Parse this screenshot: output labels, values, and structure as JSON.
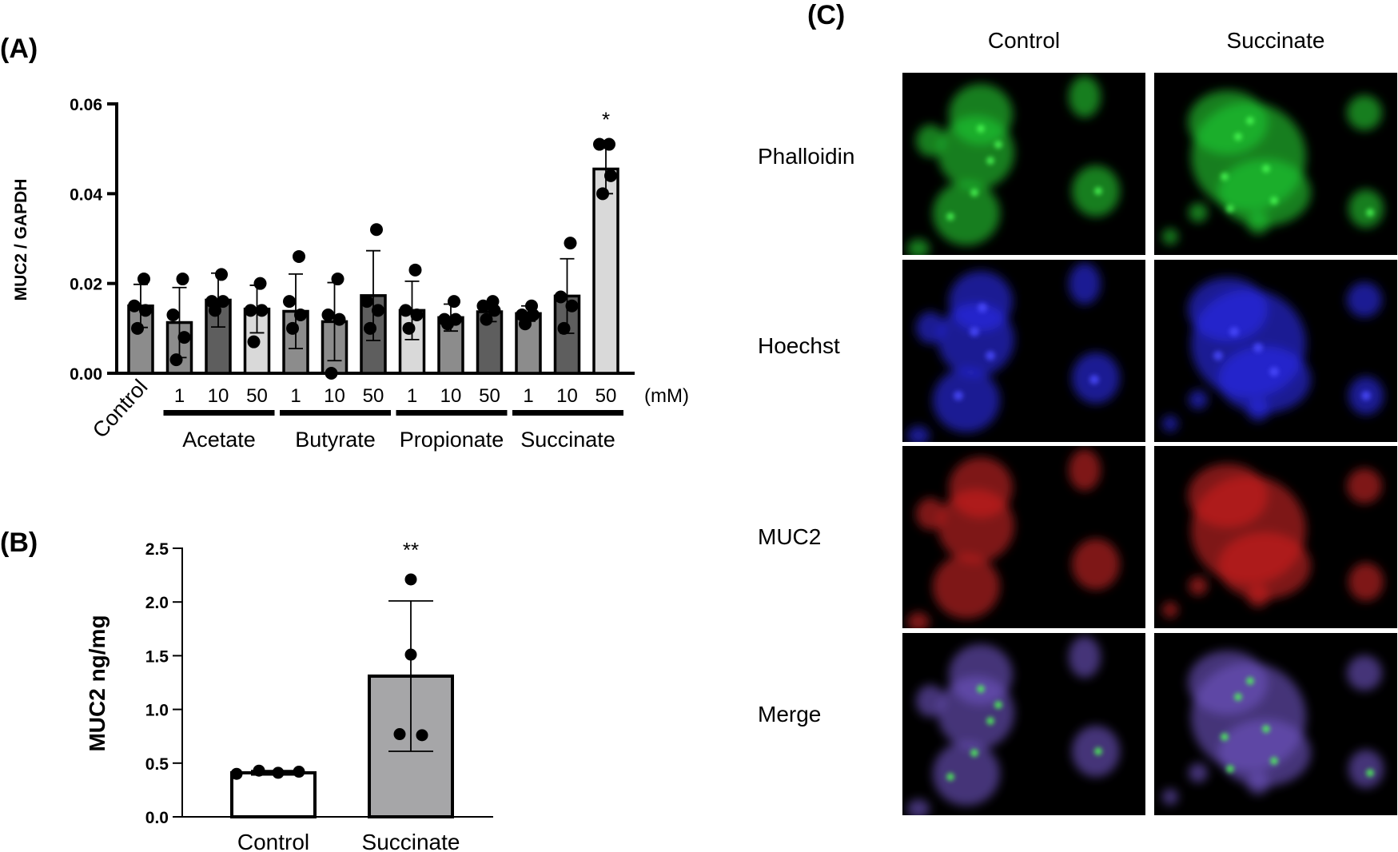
{
  "panels": {
    "a_letter": "(A)",
    "b_letter": "(B)",
    "c_letter": "(C)"
  },
  "chart_data": [
    {
      "type": "bar",
      "panel": "A",
      "title": "",
      "ylabel": "MUC2 / GAPDH",
      "xlabel": "",
      "ylim": [
        0,
        0.06
      ],
      "yticks": [
        "0.00",
        "0.02",
        "0.04",
        "0.06"
      ],
      "unit_label": "(mM)",
      "categories": [
        "Control",
        "1",
        "10",
        "50",
        "1",
        "10",
        "50",
        "1",
        "10",
        "50",
        "1",
        "10",
        "50"
      ],
      "groups": [
        {
          "name": "Acetate",
          "from": 1,
          "to": 3
        },
        {
          "name": "Butyrate",
          "from": 4,
          "to": 6
        },
        {
          "name": "Propionate",
          "from": 7,
          "to": 9
        },
        {
          "name": "Succinate",
          "from": 10,
          "to": 12
        }
      ],
      "values": [
        0.015,
        0.0113,
        0.0163,
        0.0143,
        0.0138,
        0.0115,
        0.0173,
        0.014,
        0.0124,
        0.0137,
        0.0133,
        0.0172,
        0.0455
      ],
      "error": [
        0.0048,
        0.0078,
        0.006,
        0.0053,
        0.0083,
        0.0087,
        0.01,
        0.0065,
        0.003,
        0.0022,
        0.0017,
        0.0083,
        0.0055
      ],
      "points": [
        [
          0.021,
          0.015,
          0.014,
          0.01
        ],
        [
          0.021,
          0.013,
          0.008,
          0.003
        ],
        [
          0.022,
          0.016,
          0.016,
          0.014
        ],
        [
          0.02,
          0.014,
          0.014,
          0.007
        ],
        [
          0.026,
          0.016,
          0.013,
          0.01
        ],
        [
          0.021,
          0.013,
          0.012,
          0.0
        ],
        [
          0.032,
          0.016,
          0.014,
          0.01
        ],
        [
          0.023,
          0.014,
          0.013,
          0.01
        ],
        [
          0.016,
          0.012,
          0.012,
          0.011
        ],
        [
          0.016,
          0.015,
          0.014,
          0.012
        ],
        [
          0.015,
          0.013,
          0.013,
          0.011
        ],
        [
          0.029,
          0.017,
          0.015,
          0.01
        ],
        [
          0.051,
          0.051,
          0.044,
          0.04
        ]
      ],
      "bar_colors": [
        "#8c8c8c",
        "#8c8c8c",
        "#5e5e5e",
        "#d9d9d9",
        "#8c8c8c",
        "#8c8c8c",
        "#5e5e5e",
        "#d9d9d9",
        "#8c8c8c",
        "#5e5e5e",
        "#8c8c8c",
        "#5e5e5e",
        "#d9d9d9"
      ],
      "significance": [
        {
          "index": 12,
          "label": "*"
        }
      ],
      "grid": false,
      "legend": "none"
    },
    {
      "type": "bar",
      "panel": "B",
      "title": "",
      "ylabel": "MUC2 ng/mg",
      "xlabel": "",
      "ylim": [
        0,
        2.5
      ],
      "yticks": [
        "0.0",
        "0.5",
        "1.0",
        "1.5",
        "2.0",
        "2.5"
      ],
      "categories": [
        "Control",
        "Succinate"
      ],
      "values": [
        0.41,
        1.31
      ],
      "error": [
        0.02,
        0.7
      ],
      "points": [
        [
          0.4,
          0.43,
          0.41,
          0.42
        ],
        [
          2.21,
          1.51,
          0.77,
          0.76
        ]
      ],
      "bar_colors": [
        "#ffffff",
        "#a6a6a8"
      ],
      "significance": [
        {
          "index": 1,
          "label": "**"
        }
      ],
      "grid": false,
      "legend": "none"
    }
  ],
  "micrographs": {
    "columns": [
      "Control",
      "Succinate"
    ],
    "rows": [
      {
        "label": "Phalloidin",
        "color": "#22cc33"
      },
      {
        "label": "Hoechst",
        "color": "#2a2aee"
      },
      {
        "label": "MUC2",
        "color": "#cc2222"
      },
      {
        "label": "Merge",
        "color": "#6d54c2"
      }
    ]
  }
}
